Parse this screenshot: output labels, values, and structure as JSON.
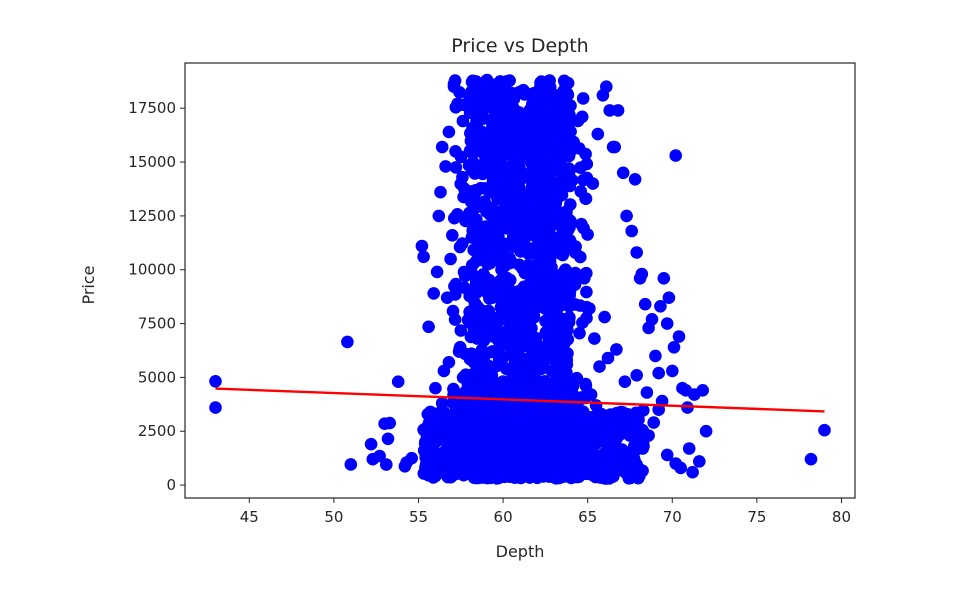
{
  "chart_data": {
    "type": "scatter",
    "title": "Price vs Depth",
    "xlabel": "Depth",
    "ylabel": "Price",
    "xlim": [
      41.2,
      80.8
    ],
    "ylim": [
      -600,
      19600
    ],
    "xticks": [
      45,
      50,
      55,
      60,
      65,
      70,
      75,
      80
    ],
    "yticks": [
      0,
      2500,
      5000,
      7500,
      10000,
      12500,
      15000,
      17500
    ],
    "grid": false,
    "legend": "none",
    "colors": {
      "points": "#0000ff",
      "fit_line": "#ff0000",
      "axes": "#262626"
    },
    "series": [
      {
        "kind": "points",
        "dense_band": {
          "x_range": [
            57,
            65
          ],
          "y_range": [
            326,
            18823
          ]
        },
        "x": [
          43.0,
          43.0,
          50.8,
          51.0,
          52.2,
          52.3,
          52.7,
          53.0,
          53.1,
          53.2,
          53.3,
          53.8,
          54.2,
          54.3,
          54.6,
          55.2,
          55.3,
          55.6,
          55.9,
          56.0,
          56.1,
          56.2,
          56.3,
          56.4,
          56.6,
          56.8,
          56.9,
          57.1,
          57.3,
          57.0,
          56.7,
          56.5,
          65.9,
          66.1,
          66.3,
          66.5,
          66.6,
          66.8,
          67.1,
          67.3,
          67.6,
          67.8,
          67.9,
          68.1,
          68.2,
          68.4,
          68.6,
          68.8,
          69.0,
          69.2,
          69.3,
          69.5,
          69.7,
          69.8,
          70.0,
          70.1,
          70.2,
          70.4,
          70.6,
          70.8,
          71.0,
          71.2,
          71.6,
          71.8,
          72.0,
          78.2,
          79.0,
          65.2,
          65.5,
          65.8,
          66.0,
          66.4,
          67.0,
          67.3,
          67.7,
          68.0,
          68.3,
          68.6,
          68.9,
          69.2,
          69.7,
          70.2,
          70.5,
          70.9,
          71.3,
          65.4,
          65.7,
          66.2,
          66.7,
          67.2,
          67.9,
          68.5,
          69.4,
          64.9,
          65.3,
          65.6,
          64.8,
          65.1,
          66.0,
          55.8,
          56.1,
          56.4,
          56.6,
          56.9,
          57.2,
          57.5,
          56.3,
          56.0,
          55.7,
          55.4,
          56.8,
          57.4
        ],
        "y": [
          4820,
          3600,
          6650,
          960,
          1900,
          1200,
          1350,
          2850,
          950,
          2150,
          2880,
          4800,
          870,
          1050,
          1250,
          11100,
          10600,
          7350,
          8900,
          4500,
          9900,
          12500,
          13600,
          15700,
          14800,
          16400,
          10500,
          18500,
          17700,
          11600,
          8700,
          5300,
          18100,
          18500,
          17400,
          15700,
          15700,
          17400,
          14500,
          12500,
          11800,
          14200,
          10800,
          9600,
          9800,
          8400,
          7300,
          7700,
          6000,
          5200,
          8300,
          9600,
          7500,
          8700,
          5300,
          6400,
          15300,
          6900,
          4500,
          4400,
          1700,
          600,
          1100,
          4400,
          2500,
          1200,
          2550,
          4200,
          3700,
          3300,
          2800,
          2000,
          1500,
          1200,
          900,
          700,
          1800,
          2300,
          2900,
          3500,
          1400,
          1000,
          800,
          3600,
          4200,
          6800,
          5500,
          5900,
          6300,
          4800,
          5100,
          4300,
          3900,
          13300,
          14000,
          16300,
          9600,
          8200,
          7800,
          2600,
          3100,
          3800,
          2200,
          1600,
          1000,
          700,
          600,
          900,
          1400,
          2000,
          5700,
          6200
        ]
      },
      {
        "kind": "fit_line",
        "x": [
          43,
          79
        ],
        "y": [
          4480,
          3420
        ]
      }
    ]
  }
}
